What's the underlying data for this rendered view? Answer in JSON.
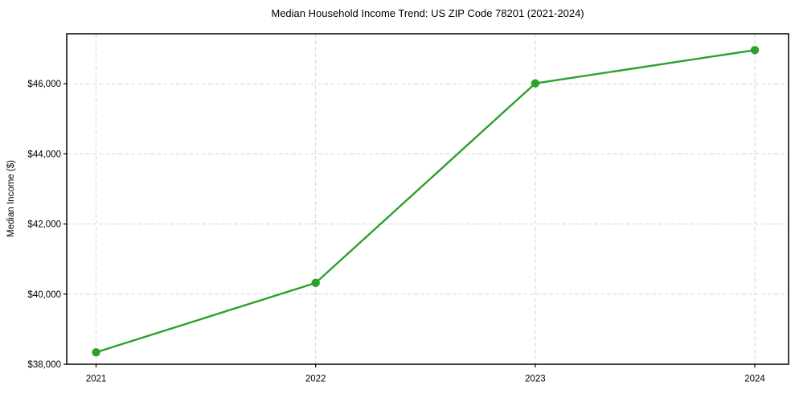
{
  "colors": {
    "line": "#2ca02c",
    "marker": "#2ca02c",
    "grid": "#d7d7d7",
    "spine": "#000000",
    "text": "#000000",
    "background": "#ffffff"
  },
  "chart_data": {
    "type": "line",
    "title": "Median Household Income Trend: US ZIP Code 78201 (2021-2024)",
    "xlabel": "",
    "ylabel": "Median Income ($)",
    "categories": [
      "2021",
      "2022",
      "2023",
      "2024"
    ],
    "series": [
      {
        "name": "Median Household Income",
        "values": [
          38340,
          40320,
          46010,
          46960
        ]
      }
    ],
    "ylim": [
      38000,
      47425
    ],
    "yticks": [
      38000,
      40000,
      42000,
      44000,
      46000
    ],
    "ytick_labels": [
      "$38,000",
      "$40,000",
      "$42,000",
      "$44,000",
      "$46,000"
    ],
    "grid": true,
    "grid_style": "dashed",
    "marker": "circle",
    "legend_position": "none"
  }
}
